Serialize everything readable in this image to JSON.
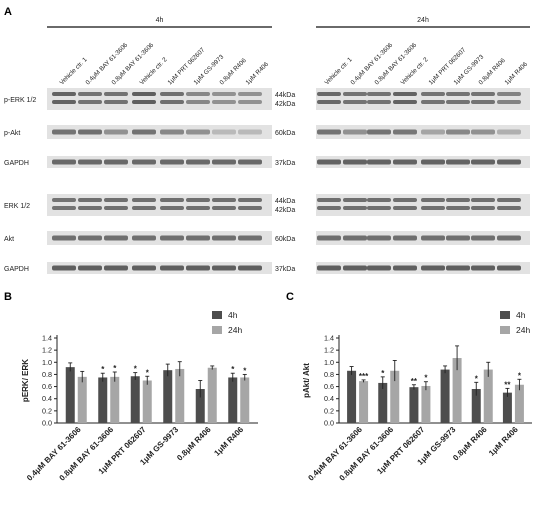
{
  "blot": {
    "panel_label": "A",
    "groups": [
      {
        "title": "4h",
        "lanes": [
          "Vehicle ctr. 1",
          "0.4μM BAY 61-3606",
          "0.8μM BAY 61-3606",
          "Vehicle ctr. 2",
          "1μM PRT 062607",
          "1μM GS-9973",
          "0.8μM R406",
          "1μM R406"
        ]
      },
      {
        "title": "24h",
        "lanes": [
          "Vehicle ctr. 1",
          "0.4μM BAY 61-3606",
          "0.8μM BAY 61-3606",
          "Vehicle ctr. 2",
          "1μM PRT 062607",
          "1μM GS-9973",
          "0.8μM R406",
          "1μM R406"
        ]
      }
    ],
    "rows": [
      {
        "label": "p-ERK 1/2",
        "kda": [
          "44kDa",
          "42kDa"
        ]
      },
      {
        "label": "p-Akt",
        "kda": [
          "60kDa"
        ]
      },
      {
        "label": "GAPDH",
        "kda": [
          "37kDa"
        ]
      },
      {
        "label": "ERK 1/2",
        "kda": [
          "44kDa",
          "42kDa"
        ]
      },
      {
        "label": "Akt",
        "kda": [
          "60kDa"
        ]
      },
      {
        "label": "GAPDH",
        "kda": [
          "37kDa"
        ]
      }
    ]
  },
  "chart_data": [
    {
      "panel_label": "B",
      "type": "bar",
      "ylabel": "pERK/ ERK",
      "ylim": [
        0,
        1.4
      ],
      "yticks": [
        "0.0",
        "0.2",
        "0.4",
        "0.6",
        "0.8",
        "1.0",
        "1.2",
        "1.4"
      ],
      "categories": [
        "0.4μM BAY 61-3606",
        "0.8μM BAY 61-3606",
        "1μM PRT 062607",
        "1μM GS-9973",
        "0.8μM R406",
        "1μM R406"
      ],
      "series": [
        {
          "name": "4h",
          "color": "#4d4d4d",
          "values": [
            0.92,
            0.75,
            0.77,
            0.87,
            0.56,
            0.75
          ],
          "errors": [
            0.07,
            0.07,
            0.06,
            0.1,
            0.14,
            0.07
          ],
          "significance": [
            "",
            "*",
            "*",
            "",
            "",
            "*"
          ]
        },
        {
          "name": "24h",
          "color": "#a6a6a6",
          "values": [
            0.76,
            0.76,
            0.7,
            0.89,
            0.91,
            0.75
          ],
          "errors": [
            0.09,
            0.08,
            0.07,
            0.12,
            0.03,
            0.05
          ],
          "significance": [
            "",
            "*",
            "*",
            "",
            "",
            "*"
          ]
        }
      ]
    },
    {
      "panel_label": "C",
      "type": "bar",
      "ylabel": "pAkt/ Akt",
      "ylim": [
        0,
        1.4
      ],
      "yticks": [
        "0.0",
        "0.2",
        "0.4",
        "0.6",
        "0.8",
        "1.0",
        "1.2",
        "1.4"
      ],
      "categories": [
        "0.4μM BAY 61-3606",
        "0.8μM BAY 61-3606",
        "1μM PRT 062607",
        "1μM GS-9973",
        "0.8μM R406",
        "1μM R406"
      ],
      "series": [
        {
          "name": "4h",
          "color": "#4d4d4d",
          "values": [
            0.86,
            0.66,
            0.59,
            0.88,
            0.56,
            0.5
          ],
          "errors": [
            0.07,
            0.1,
            0.04,
            0.06,
            0.11,
            0.07
          ],
          "significance": [
            "",
            "*",
            "**",
            "",
            "*",
            "**"
          ]
        },
        {
          "name": "24h",
          "color": "#a6a6a6",
          "values": [
            0.69,
            0.86,
            0.61,
            1.07,
            0.88,
            0.63
          ],
          "errors": [
            0.02,
            0.17,
            0.07,
            0.2,
            0.12,
            0.09
          ],
          "significance": [
            "***",
            "",
            "*",
            "",
            "",
            "*"
          ]
        }
      ]
    }
  ]
}
